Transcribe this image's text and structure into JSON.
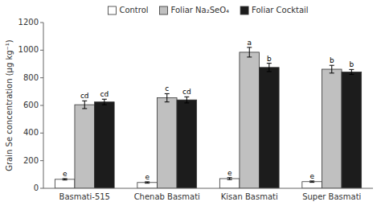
{
  "chart_data": {
    "type": "bar",
    "categories": [
      "Basmati-515",
      "Chenab Basmati",
      "Kisan Basmati",
      "Super Basmati"
    ],
    "series": [
      {
        "name": "Control",
        "color": "#ffffff",
        "values": [
          65,
          42,
          70,
          48
        ],
        "errors": [
          5,
          5,
          7,
          5
        ],
        "significance_labels": [
          "e",
          "e",
          "e",
          "e"
        ]
      },
      {
        "name": "Foliar Na₂SeO₄",
        "color": "#c0c0c0",
        "values": [
          605,
          655,
          985,
          862
        ],
        "errors": [
          28,
          30,
          35,
          28
        ],
        "significance_labels": [
          "cd",
          "c",
          "a",
          "b"
        ]
      },
      {
        "name": "Foliar Cocktail",
        "color": "#1c1c1c",
        "values": [
          625,
          640,
          875,
          842
        ],
        "errors": [
          20,
          22,
          30,
          18
        ],
        "significance_labels": [
          "cd",
          "cd",
          "b",
          "b"
        ]
      }
    ],
    "ylabel": "Grain Se concentration (μg kg⁻¹)",
    "ylim": [
      0,
      1200
    ],
    "yticks": [
      0,
      200,
      400,
      600,
      800,
      1000,
      1200
    ],
    "grid": false,
    "legend": "top"
  }
}
